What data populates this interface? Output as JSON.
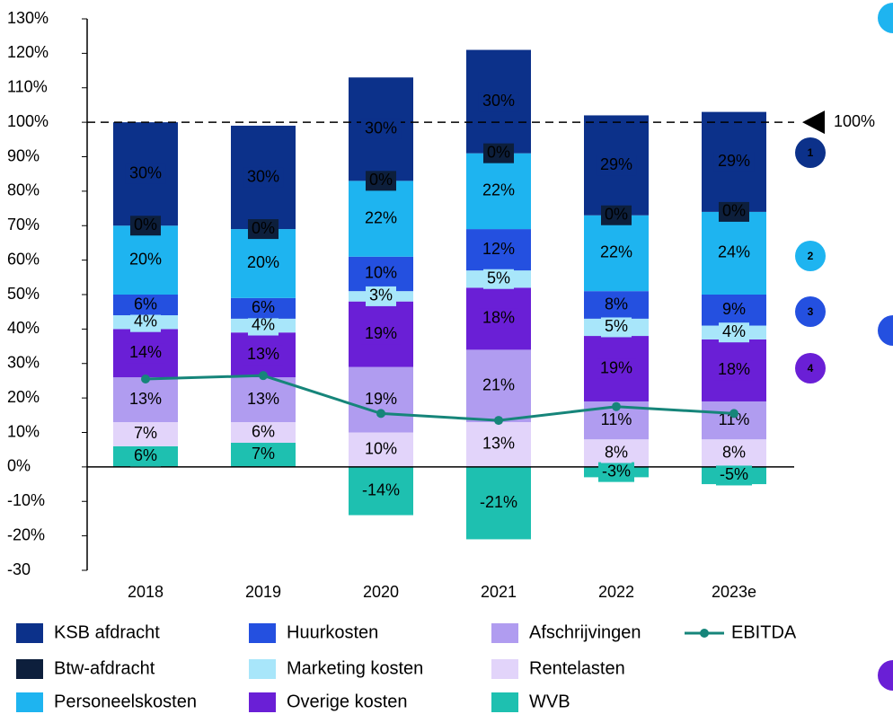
{
  "chart_data": {
    "type": "stacked_bar_line",
    "categories": [
      "2018",
      "2019",
      "2020",
      "2021",
      "2022",
      "2023e"
    ],
    "ylim": [
      -30,
      130
    ],
    "yticks": [
      -30,
      {
        "value": -20,
        "label": "-20%"
      },
      {
        "value": -10,
        "label": "-10%"
      },
      {
        "value": 0,
        "label": "0%"
      },
      {
        "value": 10,
        "label": "10%"
      },
      {
        "value": 20,
        "label": "20%"
      },
      {
        "value": 30,
        "label": "30%"
      },
      {
        "value": 40,
        "label": "40%"
      },
      {
        "value": 50,
        "label": "50%"
      },
      {
        "value": 60,
        "label": "60%"
      },
      {
        "value": 70,
        "label": "70%"
      },
      {
        "value": 80,
        "label": "80%"
      },
      {
        "value": 90,
        "label": "90%"
      },
      {
        "value": 100,
        "label": "100%"
      },
      {
        "value": 110,
        "label": "110%"
      },
      {
        "value": 120,
        "label": "120%"
      },
      {
        "value": 130,
        "label": "130%"
      }
    ],
    "series": [
      {
        "name": "KSB afdracht",
        "color": "#0c318a",
        "label_color": "#ffffff",
        "values": [
          30,
          30,
          30,
          30,
          29,
          29
        ],
        "value_labels": [
          "30%",
          "30%",
          "30%",
          "30%",
          "29%",
          "29%"
        ]
      },
      {
        "name": "Btw-afdracht",
        "color": "#0d1f3c",
        "label_color": "#ffffff",
        "values": [
          0,
          0,
          0,
          0,
          0,
          0
        ],
        "value_labels": [
          "0%",
          "0%",
          "0%",
          "0%",
          "0%",
          "0%"
        ]
      },
      {
        "name": "Personeelskosten",
        "color": "#1eb4f0",
        "label_color": "#ffffff",
        "values": [
          20,
          20,
          22,
          22,
          22,
          24
        ],
        "value_labels": [
          "20%",
          "20%",
          "22%",
          "22%",
          "22%",
          "24%"
        ]
      },
      {
        "name": "Huurkosten",
        "color": "#2450e0",
        "label_color": "#ffffff",
        "values": [
          6,
          6,
          10,
          12,
          8,
          9
        ],
        "value_labels": [
          "6%",
          "6%",
          "10%",
          "12%",
          "8%",
          "9%"
        ]
      },
      {
        "name": "Marketing kosten",
        "color": "#a8e6fa",
        "label_color": "#0c318a",
        "values": [
          4,
          4,
          3,
          5,
          5,
          4
        ],
        "value_labels": [
          "4%",
          "4%",
          "3%",
          "5%",
          "5%",
          "4%"
        ]
      },
      {
        "name": "Overige kosten",
        "color": "#6a1fd6",
        "label_color": "#ffffff",
        "values": [
          14,
          13,
          19,
          18,
          19,
          18
        ],
        "value_labels": [
          "14%",
          "13%",
          "19%",
          "18%",
          "19%",
          "18%"
        ]
      },
      {
        "name": "Afschrijvingen",
        "color": "#b09cf0",
        "label_color": "#0c318a",
        "values": [
          13,
          13,
          19,
          21,
          11,
          11
        ],
        "value_labels": [
          "13%",
          "13%",
          "19%",
          "21%",
          "11%",
          "11%"
        ]
      },
      {
        "name": "Rentelasten",
        "color": "#e2d4fa",
        "label_color": "#0c318a",
        "values": [
          7,
          6,
          10,
          13,
          8,
          8
        ],
        "value_labels": [
          "7%",
          "6%",
          "10%",
          "13%",
          "8%",
          "8%"
        ]
      },
      {
        "name": "WVB",
        "color": "#1ec0b0",
        "label_color": "#ffffff",
        "values": [
          6,
          7,
          -14,
          -21,
          -3,
          -5
        ],
        "value_labels": [
          "6%",
          "7%",
          "-14%",
          "-21%",
          "-3%",
          "-5%"
        ]
      }
    ],
    "line": {
      "name": "EBITDA",
      "color": "#16857a",
      "values": [
        25.5,
        26.5,
        15.5,
        13.5,
        17.5,
        15.5
      ]
    },
    "reference_line": {
      "value": 100,
      "label": "100%"
    },
    "markers": [
      {
        "label": "1",
        "color": "#0c318a"
      },
      {
        "label": "2",
        "color": "#1eb4f0"
      },
      {
        "label": "3",
        "color": "#2450e0"
      },
      {
        "label": "4",
        "color": "#6a1fd6"
      }
    ]
  }
}
